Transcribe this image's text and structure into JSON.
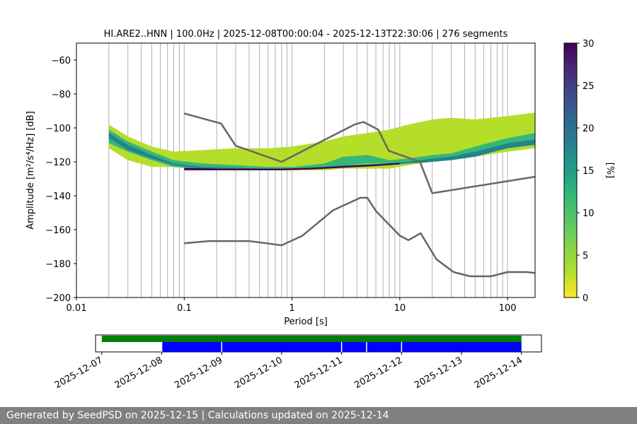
{
  "chart_data": [
    {
      "type": "heatmap",
      "title": "HI.ARE2..HNN | 100.0Hz | 2025-12-08T00:00:04 - 2025-12-13T22:30:06 | 276 segments",
      "xlabel": "Period [s]",
      "ylabel": "Amplitude [m²/s⁴/Hz] [dB]",
      "x_scale": "log",
      "xlim": [
        0.01,
        180
      ],
      "ylim": [
        -200,
        -50
      ],
      "grid": true,
      "x_ticks": [
        0.01,
        0.1,
        1,
        10,
        100
      ],
      "x_tick_labels": [
        "0.01",
        "0.1",
        "1",
        "10",
        "100"
      ],
      "y_ticks": [
        -60,
        -80,
        -100,
        -120,
        -140,
        -160,
        -180,
        -200
      ],
      "y_tick_labels": [
        "−60",
        "−80",
        "−100",
        "−120",
        "−140",
        "−160",
        "−180",
        "−200"
      ],
      "colorbar": {
        "label": "[%]",
        "range": [
          0,
          30
        ],
        "ticks": [
          0,
          5,
          10,
          15,
          20,
          25,
          30
        ],
        "tick_labels": [
          "0",
          "5",
          "10",
          "15",
          "20",
          "25",
          "30"
        ],
        "colormap": "viridis_r"
      },
      "psd_density_bands": [
        {
          "level": 2,
          "period": [
            0.02,
            0.03,
            0.05,
            0.08,
            0.15,
            0.3,
            0.6,
            1.0,
            2.0,
            3.0,
            5.0,
            8.0,
            12.0,
            20.0,
            30.0,
            50.0,
            100.0,
            180.0
          ],
          "db_upper": [
            -98,
            -105,
            -111,
            -114,
            -113,
            -112,
            -112,
            -111,
            -108,
            -105,
            -103,
            -101,
            -98,
            -95,
            -94,
            -95,
            -93,
            -91
          ],
          "db_lower": [
            -112,
            -119,
            -123,
            -123,
            -125,
            -125,
            -125,
            -125,
            -125,
            -124,
            -124,
            -124,
            -122,
            -120,
            -119,
            -117,
            -114,
            -112
          ]
        },
        {
          "level": 9,
          "period": [
            0.02,
            0.03,
            0.05,
            0.08,
            0.15,
            0.3,
            0.6,
            1.0,
            2.0,
            3.0,
            5.0,
            8.0,
            12.0,
            20.0,
            30.0,
            50.0,
            100.0,
            180.0
          ],
          "db_upper": [
            -101,
            -108,
            -114,
            -119,
            -121,
            -122,
            -123,
            -123,
            -121,
            -117,
            -116,
            -119,
            -118,
            -116,
            -115,
            -111,
            -106,
            -103
          ],
          "db_lower": [
            -109,
            -114,
            -119,
            -123,
            -124,
            -124,
            -124,
            -124,
            -123,
            -122,
            -121,
            -121,
            -120,
            -119,
            -118,
            -116,
            -112,
            -110
          ]
        },
        {
          "level": 17,
          "period": [
            0.02,
            0.03,
            0.05,
            0.08,
            0.15,
            0.3,
            0.6,
            1.0,
            2.0,
            3.0,
            5.0,
            8.0,
            12.0,
            20.0,
            30.0,
            50.0,
            100.0,
            180.0
          ],
          "db_upper": [
            -103,
            -110,
            -116,
            -121,
            -123,
            -123.5,
            -124,
            -124,
            -123,
            -122,
            -121.5,
            -121,
            -120,
            -118,
            -117,
            -114,
            -109,
            -107
          ],
          "db_lower": [
            -106,
            -113,
            -118,
            -122,
            -124,
            -124,
            -124.5,
            -124.5,
            -124,
            -123,
            -122.5,
            -122,
            -121,
            -120,
            -119,
            -117,
            -112,
            -110
          ]
        },
        {
          "level": 30,
          "period": [
            0.1,
            0.2,
            0.4,
            0.8,
            1.5,
            3.0,
            6.0,
            10.0
          ],
          "db_upper": [
            -123.5,
            -124,
            -124,
            -124,
            -123.5,
            -122.5,
            -121.5,
            -120.5
          ],
          "db_lower": [
            -125,
            -125,
            -125,
            -125,
            -124.5,
            -123.5,
            -122.5,
            -121.5
          ]
        }
      ],
      "series": [
        {
          "x": [
            0.1,
            0.22,
            0.3,
            0.8,
            3.8,
            4.6,
            6.3,
            7.9,
            15.4,
            20,
            180
          ],
          "y": [
            -91.5,
            -97.4,
            -110.5,
            -120,
            -98,
            -96.5,
            -101,
            -113.5,
            -120,
            -138.5,
            -128.8
          ],
          "color": "#666666"
        },
        {
          "x": [
            0.1,
            0.17,
            0.4,
            0.8,
            1.24,
            2.4,
            4.3,
            5.0,
            6.0,
            10.0,
            12.0,
            15.6,
            21.9,
            31.6,
            45.0,
            70.0,
            100,
            150,
            180
          ],
          "y": [
            -168,
            -166.7,
            -166.7,
            -169.2,
            -163.7,
            -148.6,
            -141.2,
            -141.2,
            -149,
            -163.5,
            -166.2,
            -162.1,
            -177.5,
            -185,
            -187.5,
            -187.5,
            -185,
            -185,
            -185.5
          ],
          "color": "#666666"
        }
      ]
    },
    {
      "type": "timeline",
      "x_tick_labels": [
        "2025-12-07",
        "2025-12-08",
        "2025-12-09",
        "2025-12-10",
        "2025-12-11",
        "2025-12-12",
        "2025-12-13",
        "2025-12-14"
      ],
      "range": [
        "2025-12-06T21:30",
        "2025-12-14T08:00"
      ],
      "green_bar": {
        "start": "2025-12-07T00:00",
        "end": "2025-12-14T00:00",
        "color": "#008000"
      },
      "blue_segments": [
        {
          "start": "2025-12-08T00:00",
          "end": "2025-12-09T00:00"
        },
        {
          "start": "2025-12-09T00:00",
          "end": "2025-12-11T00:00"
        },
        {
          "start": "2025-12-11T00:00",
          "end": "2025-12-11T10:00"
        },
        {
          "start": "2025-12-11T10:00",
          "end": "2025-12-12T00:00"
        },
        {
          "start": "2025-12-12T00:00",
          "end": "2025-12-14T00:00"
        }
      ],
      "blue_color": "#0000ff"
    }
  ],
  "footer": {
    "text": "Generated by SeedPSD on 2025-12-15 | Calculations updated on 2025-12-14"
  }
}
